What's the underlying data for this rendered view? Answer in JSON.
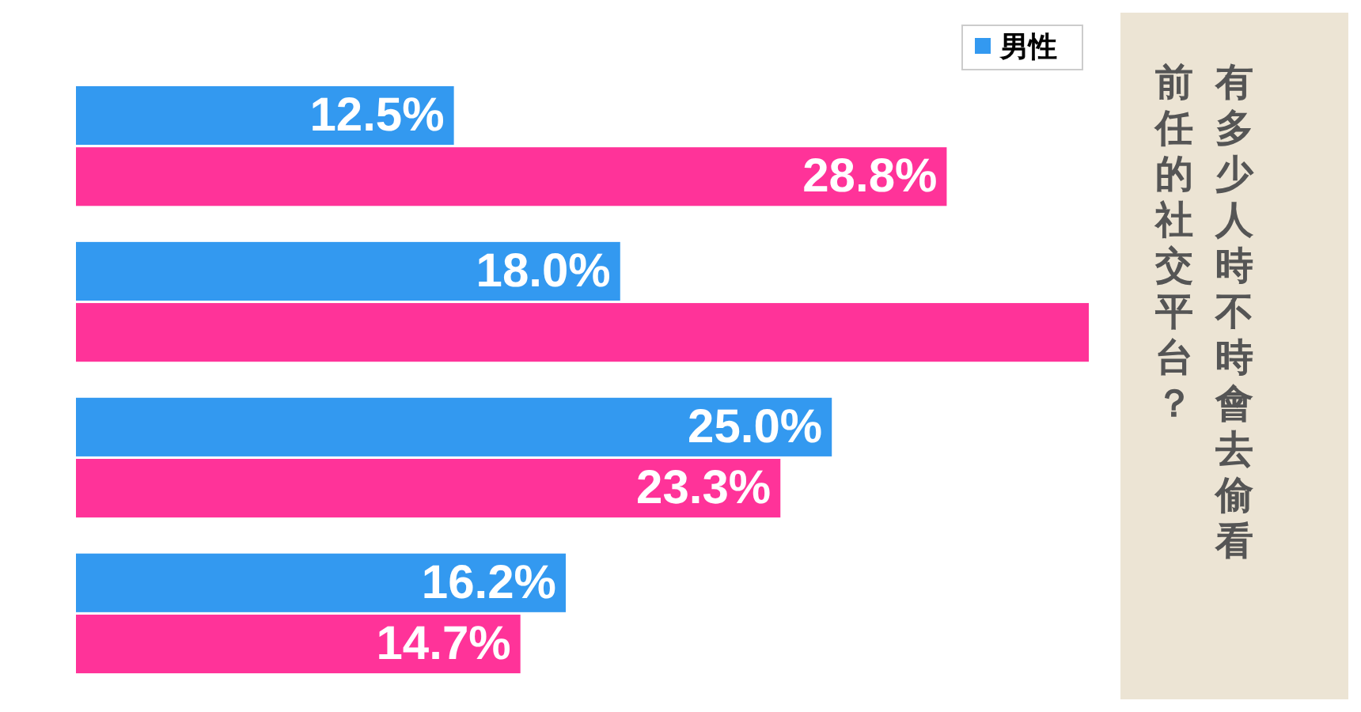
{
  "chart_data": {
    "type": "bar",
    "orientation": "horizontal",
    "title": "有多少人時不時會去偷看前任的社交平台？",
    "categories": [
      null,
      null,
      null,
      null
    ],
    "series": [
      {
        "name": "男性",
        "color": "#3399f0",
        "values": [
          12.5,
          18.0,
          25.0,
          16.2
        ],
        "value_labels": [
          "12.5%",
          "18.0%",
          "25.0%",
          "16.2%"
        ]
      },
      {
        "color": "#ff3399",
        "values": [
          28.8,
          33.5,
          23.3,
          14.7
        ],
        "value_labels": [
          "28.8%",
          null,
          "23.3%",
          "14.7%"
        ]
      }
    ],
    "legend": "top right"
  }
}
